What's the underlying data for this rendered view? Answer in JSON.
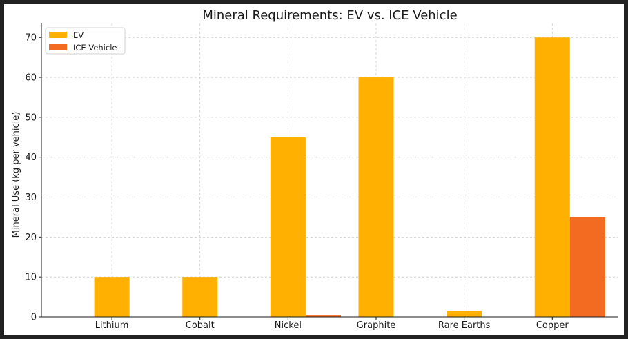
{
  "chart_data": {
    "type": "bar",
    "title": "Mineral Requirements: EV vs. ICE Vehicle",
    "xlabel": "",
    "ylabel": "Mineral Use (kg per vehicle)",
    "categories": [
      "Lithium",
      "Cobalt",
      "Nickel",
      "Graphite",
      "Rare Earths",
      "Copper"
    ],
    "series": [
      {
        "name": "EV",
        "color": "#FFB000",
        "values": [
          10,
          10,
          45,
          60,
          1.5,
          70
        ]
      },
      {
        "name": "ICE Vehicle",
        "color": "#F26B21",
        "values": [
          0,
          0,
          0.5,
          0,
          0,
          25
        ]
      }
    ],
    "ylim": [
      0,
      73.5
    ],
    "yticks": [
      0,
      10,
      20,
      30,
      40,
      50,
      60,
      70
    ],
    "grid": true,
    "legend": "top-left"
  }
}
